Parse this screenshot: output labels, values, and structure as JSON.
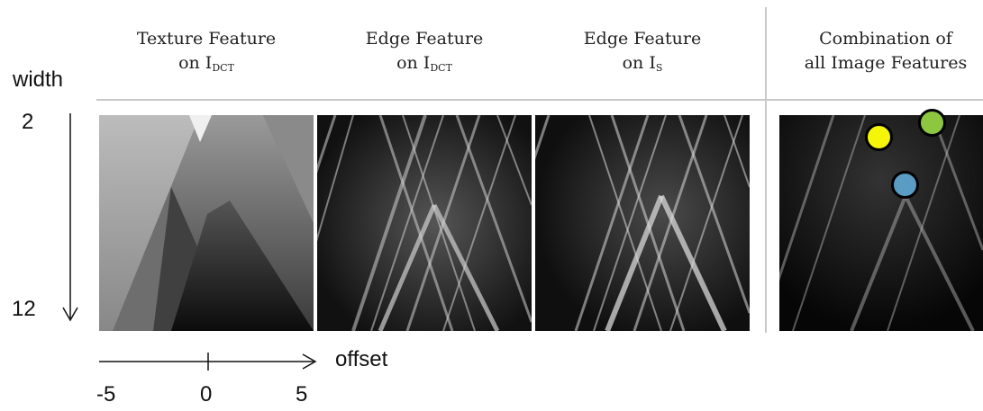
{
  "headers": [
    {
      "line1": "Texture Feature",
      "line2_prefix": "on I",
      "line2_sub": "DCT"
    },
    {
      "line1": "Edge Feature",
      "line2_prefix": "on I",
      "line2_sub": "DCT"
    },
    {
      "line1": "Edge Feature",
      "line2_prefix": "on I",
      "line2_sub": "S"
    },
    {
      "line1": "Combination of",
      "line2_prefix": "all Image Features",
      "line2_sub": ""
    }
  ],
  "axes": {
    "y_label": "width",
    "y_top": "2",
    "y_bottom": "12",
    "x_label": "offset",
    "x_ticks": [
      "-5",
      "0",
      "5"
    ]
  },
  "markers": [
    {
      "name": "yellow",
      "color": "#f5f50a"
    },
    {
      "name": "green",
      "color": "#8dc63f"
    },
    {
      "name": "blue",
      "color": "#5a9cc4"
    }
  ]
}
